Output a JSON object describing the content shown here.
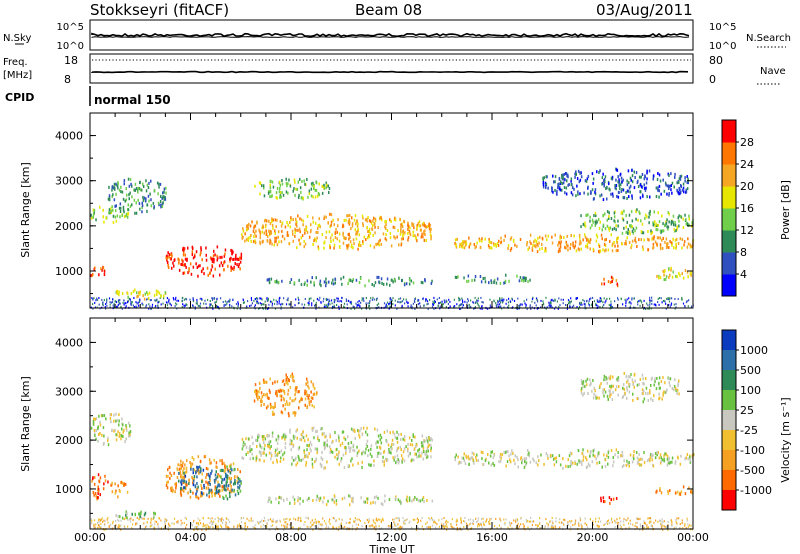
{
  "header": {
    "station": "Stokkseyri (fitACF)",
    "beam": "Beam 08",
    "date": "03/Aug/2011"
  },
  "params": {
    "nsky_label": "N.Sky",
    "nsky_ticks": [
      "10^5",
      "10^0"
    ],
    "nsearch_label": "N.Search",
    "nsearch_ticks": [
      "10^5",
      "10^0"
    ],
    "freq_label_1": "Freq.",
    "freq_label_2": "[MHz]",
    "freq_ticks": [
      "18",
      "8"
    ],
    "nave_label": "Nave",
    "nave_ticks": [
      "80",
      "0"
    ],
    "cpid_label": "CPID",
    "cpid_value": "normal 150"
  },
  "chart_data": [
    {
      "type": "heatmap",
      "panel": "power",
      "ylabel": "Slant Range [km]",
      "xlabel": "",
      "ylim": [
        180,
        4500
      ],
      "xlim": [
        0,
        24
      ],
      "yticks": [
        "1000",
        "2000",
        "3000",
        "4000"
      ],
      "xticks": [
        "00:00",
        "04:00",
        "08:00",
        "12:00",
        "16:00",
        "20:00",
        "00:00"
      ],
      "colorbar": {
        "label": "Power [dB]",
        "ticks": [
          "4",
          "8",
          "12",
          "16",
          "20",
          "24",
          "28"
        ],
        "colors": [
          "#0000ff",
          "#3050c0",
          "#2e8b57",
          "#6fcf4a",
          "#e6e600",
          "#f5a623",
          "#ff7700",
          "#ff0000"
        ]
      },
      "features": [
        {
          "t0": 0.0,
          "t1": 0.6,
          "r0": 850,
          "r1": 1150,
          "level": 6
        },
        {
          "t0": 0.0,
          "t1": 1.5,
          "r0": 2100,
          "r1": 2500,
          "level": 3
        },
        {
          "t0": 0.7,
          "t1": 3.0,
          "r0": 2300,
          "r1": 3100,
          "level": 2
        },
        {
          "t0": 3.0,
          "t1": 6.0,
          "r0": 900,
          "r1": 1600,
          "level": 7
        },
        {
          "t0": 1.0,
          "t1": 3.0,
          "r0": 400,
          "r1": 650,
          "level": 4
        },
        {
          "t0": 6.0,
          "t1": 13.6,
          "r0": 1500,
          "r1": 2300,
          "level": 5
        },
        {
          "t0": 6.5,
          "t1": 9.5,
          "r0": 2600,
          "r1": 3100,
          "level": 3
        },
        {
          "t0": 7.0,
          "t1": 13.6,
          "r0": 700,
          "r1": 900,
          "level": 2
        },
        {
          "t0": 14.5,
          "t1": 24.0,
          "r0": 1450,
          "r1": 1850,
          "level": 5
        },
        {
          "t0": 18.0,
          "t1": 23.8,
          "r0": 2600,
          "r1": 3300,
          "level": 1
        },
        {
          "t0": 19.5,
          "t1": 24.0,
          "r0": 1850,
          "r1": 2400,
          "level": 3
        },
        {
          "t0": 22.5,
          "t1": 24.0,
          "r0": 800,
          "r1": 1100,
          "level": 4
        },
        {
          "t0": 14.5,
          "t1": 17.5,
          "r0": 750,
          "r1": 950,
          "level": 2
        },
        {
          "t0": 20.3,
          "t1": 21.0,
          "r0": 650,
          "r1": 900,
          "level": 6
        }
      ]
    },
    {
      "type": "heatmap",
      "panel": "velocity",
      "ylabel": "Slant Range [km]",
      "xlabel": "Time UT",
      "ylim": [
        180,
        4500
      ],
      "xlim": [
        0,
        24
      ],
      "yticks": [
        "1000",
        "2000",
        "3000",
        "4000"
      ],
      "xticks": [
        "00:00",
        "04:00",
        "08:00",
        "12:00",
        "16:00",
        "20:00",
        "00:00"
      ],
      "colorbar": {
        "label": "Velocity [m s⁻¹]",
        "ticks": [
          "1000",
          "500",
          "100",
          "25",
          "-25",
          "-100",
          "-500",
          "-1000"
        ],
        "colors": [
          "#0b3bbf",
          "#2d6fa8",
          "#2e8b57",
          "#69c23f",
          "#c8c8c0",
          "#f0c030",
          "#f5a020",
          "#ff6a00",
          "#ff0000"
        ]
      },
      "features": [
        {
          "t0": 0.0,
          "t1": 0.7,
          "r0": 800,
          "r1": 1350,
          "level": 7
        },
        {
          "t0": 0.7,
          "t1": 1.5,
          "r0": 850,
          "r1": 1200,
          "level": 6
        },
        {
          "t0": 0.0,
          "t1": 1.6,
          "r0": 1900,
          "r1": 2600,
          "level": 4
        },
        {
          "t0": 1.0,
          "t1": 2.6,
          "r0": 400,
          "r1": 600,
          "level": 3
        },
        {
          "t0": 3.0,
          "t1": 6.0,
          "r0": 800,
          "r1": 1700,
          "level": 6
        },
        {
          "t0": 3.5,
          "t1": 5.5,
          "r0": 900,
          "r1": 1500,
          "level": 1
        },
        {
          "t0": 5.0,
          "t1": 6.0,
          "r0": 800,
          "r1": 1500,
          "level": 2
        },
        {
          "t0": 6.0,
          "t1": 13.6,
          "r0": 1450,
          "r1": 2300,
          "level": 4
        },
        {
          "t0": 6.5,
          "t1": 9.0,
          "r0": 2500,
          "r1": 3400,
          "level": 6
        },
        {
          "t0": 7.0,
          "t1": 13.6,
          "r0": 700,
          "r1": 900,
          "level": 4
        },
        {
          "t0": 14.5,
          "t1": 24.0,
          "r0": 1450,
          "r1": 1850,
          "level": 4
        },
        {
          "t0": 19.5,
          "t1": 23.5,
          "r0": 2800,
          "r1": 3400,
          "level": 4
        },
        {
          "t0": 20.3,
          "t1": 21.0,
          "r0": 700,
          "r1": 900,
          "level": 8
        },
        {
          "t0": 22.5,
          "t1": 24.0,
          "r0": 900,
          "r1": 1100,
          "level": 6
        }
      ]
    }
  ]
}
